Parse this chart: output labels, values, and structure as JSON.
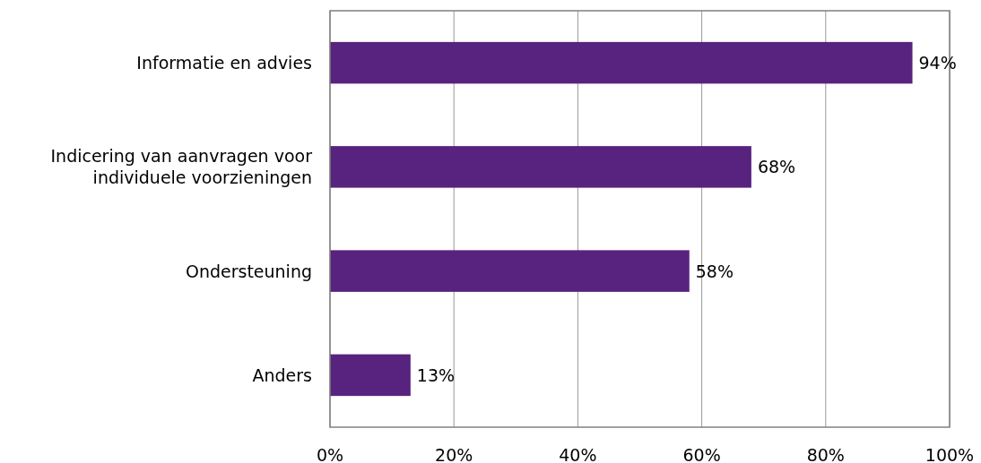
{
  "chart_data": {
    "type": "bar",
    "orientation": "horizontal",
    "categories": [
      "Informatie en advies",
      "Indicering van aanvragen voor individuele voorzieningen",
      "Ondersteuning",
      "Anders"
    ],
    "values": [
      94,
      68,
      58,
      13
    ],
    "value_labels": [
      "94%",
      "68%",
      "58%",
      "13%"
    ],
    "color": "#58237e",
    "xlim": [
      0,
      100
    ],
    "xticks": [
      {
        "value": 0,
        "label": "0%"
      },
      {
        "value": 20,
        "label": "20%"
      },
      {
        "value": 40,
        "label": "40%"
      },
      {
        "value": 60,
        "label": "60%"
      },
      {
        "value": 80,
        "label": "80%"
      },
      {
        "value": 100,
        "label": "100%"
      }
    ],
    "grid": "x"
  }
}
